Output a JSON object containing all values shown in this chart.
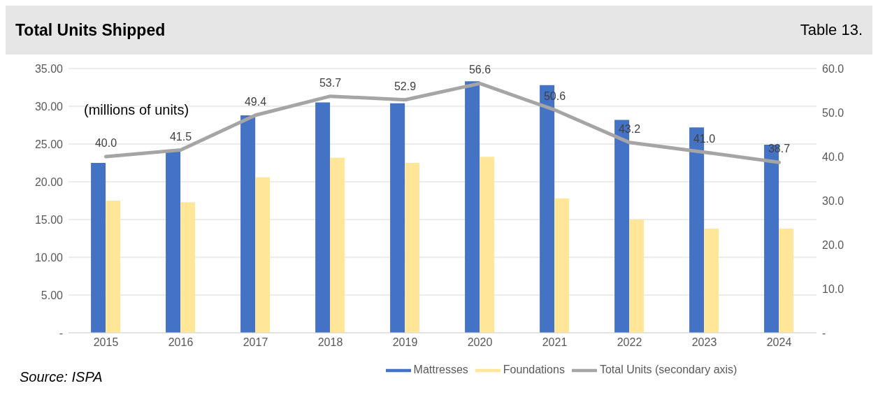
{
  "chart_data": {
    "type": "bar",
    "title": "Total Units Shipped",
    "subtitle": "Table 13.",
    "annotations": [
      "(millions of units)",
      "Source: ISPA"
    ],
    "categories": [
      "2015",
      "2016",
      "2017",
      "2018",
      "2019",
      "2020",
      "2021",
      "2022",
      "2023",
      "2024"
    ],
    "series": [
      {
        "name": "Mattresses",
        "color": "#4472c4",
        "values": [
          22.5,
          24.2,
          28.8,
          30.5,
          30.4,
          33.3,
          32.8,
          28.2,
          27.2,
          24.9
        ]
      },
      {
        "name": "Foundations",
        "color": "#ffe699",
        "values": [
          17.5,
          17.3,
          20.6,
          23.2,
          22.5,
          23.3,
          17.8,
          15.0,
          13.8,
          13.8
        ]
      },
      {
        "name": "Total Units (secondary axis)",
        "type": "line",
        "axis": "y2",
        "color": "#a5a5a5",
        "values": [
          40.0,
          41.5,
          49.4,
          53.7,
          52.9,
          56.6,
          50.6,
          43.2,
          41.0,
          38.7
        ],
        "value_labels": [
          "40.0",
          "41.5",
          "49.4",
          "53.7",
          "52.9",
          "56.6",
          "50.6",
          "43.2",
          "41.0",
          "38.7"
        ]
      }
    ],
    "ylim": [
      0,
      35
    ],
    "yticks": [
      {
        "value": 0,
        "label": "-"
      },
      {
        "value": 5,
        "label": "5.00"
      },
      {
        "value": 10,
        "label": "10.00"
      },
      {
        "value": 15,
        "label": "15.00"
      },
      {
        "value": 20,
        "label": "20.00"
      },
      {
        "value": 25,
        "label": "25.00"
      },
      {
        "value": 30,
        "label": "30.00"
      },
      {
        "value": 35,
        "label": "35.00"
      }
    ],
    "y2lim": [
      0,
      60
    ],
    "y2ticks": [
      {
        "value": 0,
        "label": "-"
      },
      {
        "value": 10,
        "label": "10.0"
      },
      {
        "value": 20,
        "label": "20.0"
      },
      {
        "value": 30,
        "label": "30.0"
      },
      {
        "value": 40,
        "label": "40.0"
      },
      {
        "value": 50,
        "label": "50.0"
      },
      {
        "value": 60,
        "label": "60.0"
      }
    ],
    "grid": "y",
    "legend": "bottom"
  }
}
